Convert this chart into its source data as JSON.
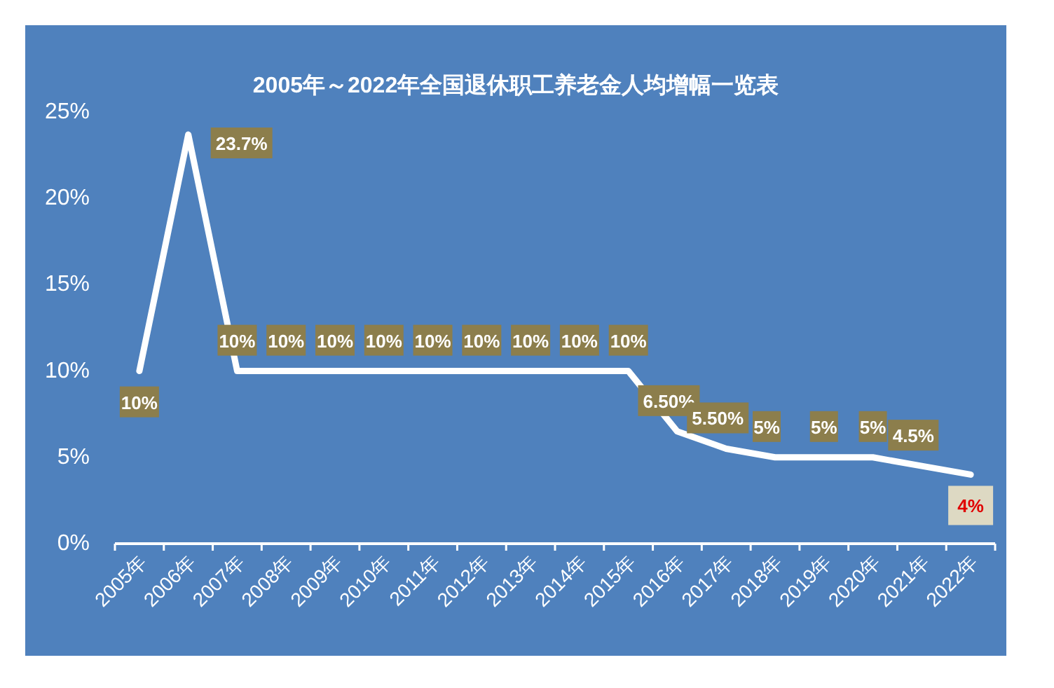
{
  "chart_data": {
    "type": "line",
    "title": "2005年～2022年全国退休职工养老金人均增幅一览表",
    "categories": [
      "2005年",
      "2006年",
      "2007年",
      "2008年",
      "2009年",
      "2010年",
      "2011年",
      "2012年",
      "2013年",
      "2014年",
      "2015年",
      "2016年",
      "2017年",
      "2018年",
      "2019年",
      "2020年",
      "2021年",
      "2022年"
    ],
    "series": [
      {
        "color": "#ffffff",
        "values": [
          10,
          23.7,
          10,
          10,
          10,
          10,
          10,
          10,
          10,
          10,
          10,
          6.5,
          5.5,
          5,
          5,
          5,
          4.5,
          4
        ]
      }
    ],
    "value_labels": [
      "10%",
      "23.7%",
      "10%",
      "10%",
      "10%",
      "10%",
      "10%",
      "10%",
      "10%",
      "10%",
      "10%",
      "6.50%",
      "5.50%",
      "5%",
      "5%",
      "5%",
      "4.5%",
      "4%"
    ],
    "ylim": [
      0,
      25
    ],
    "yticks": [
      {
        "value": 0,
        "label": "0%"
      },
      {
        "value": 5,
        "label": "5%"
      },
      {
        "value": 10,
        "label": "10%"
      },
      {
        "value": 15,
        "label": "15%"
      },
      {
        "value": 20,
        "label": "20%"
      },
      {
        "value": 25,
        "label": "25%"
      }
    ],
    "marker": "none",
    "line_style": "solid"
  }
}
